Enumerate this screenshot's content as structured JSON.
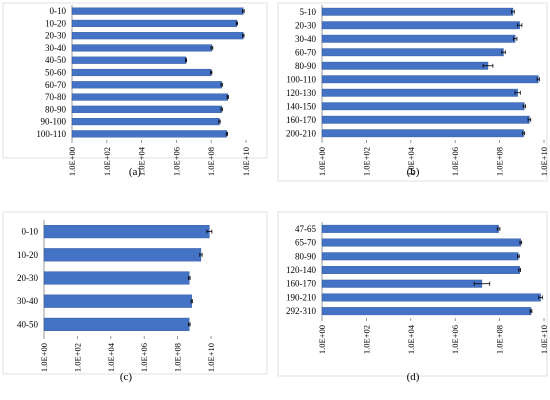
{
  "theme": {
    "bar_color": "#4472c4",
    "bar_edge": "#2f5597",
    "frame_color": "#d9d9d9",
    "axis_color": "#7f7f7f"
  },
  "chart_data": [
    {
      "type": "bar",
      "orientation": "horizontal",
      "panel_label": "(a)",
      "x_scale": "log",
      "xlim": [
        1,
        10000000000
      ],
      "x_ticks": [
        "1.0E+00",
        "1.0E+02",
        "1.0E+04",
        "1.0E+06",
        "1.0E+08",
        "1.0E+10"
      ],
      "categories": [
        "0-10",
        "10-20",
        "20-30",
        "30-40",
        "40-50",
        "50-60",
        "60-70",
        "70-80",
        "80-90",
        "90-100",
        "100-110"
      ],
      "values": [
        7000000000,
        3000000000,
        7000000000,
        110000000,
        3600000,
        100000000,
        400000000,
        900000000,
        400000000,
        300000000,
        800000000
      ],
      "error": [
        0.05,
        0.04,
        0.04,
        0.05,
        0.03,
        0.04,
        0.04,
        0.04,
        0.04,
        0.04,
        0.04
      ],
      "grid": false,
      "legend": "none"
    },
    {
      "type": "bar",
      "orientation": "horizontal",
      "panel_label": "(b)",
      "x_scale": "log",
      "xlim": [
        1,
        10000000000
      ],
      "x_ticks": [
        "1.0E+00",
        "1.0E+02",
        "1.0E+04",
        "1.0E+06",
        "1.0E+08",
        "1.0E+10"
      ],
      "categories": [
        "5-10",
        "20-30",
        "30-40",
        "60-70",
        "80-90",
        "100-110",
        "120-130",
        "140-150",
        "160-170",
        "200-210"
      ],
      "values": [
        400000000,
        800000000,
        500000000,
        150000000,
        30000000,
        5500000000,
        650000000,
        1300000000,
        2200000000,
        1200000000
      ],
      "error": [
        0.06,
        0.1,
        0.08,
        0.08,
        0.22,
        0.05,
        0.12,
        0.05,
        0.06,
        0.04
      ],
      "grid": false,
      "legend": "none"
    },
    {
      "type": "bar",
      "orientation": "horizontal",
      "panel_label": "(c)",
      "x_scale": "log",
      "xlim": [
        1,
        10000000000
      ],
      "x_ticks": [
        "1.0E+00",
        "1.0E+02",
        "1.0E+04",
        "1.0E+06",
        "1.0E+08",
        "1.0E+10"
      ],
      "categories": [
        "0-10",
        "10-20",
        "20-30",
        "30-40",
        "40-50"
      ],
      "values": [
        8000000000,
        2500000000,
        500000000,
        700000000,
        500000000
      ],
      "error": [
        0.15,
        0.07,
        0.05,
        0.04,
        0.05
      ],
      "grid": false,
      "legend": "none"
    },
    {
      "type": "bar",
      "orientation": "horizontal",
      "panel_label": "(d)",
      "x_scale": "log",
      "xlim": [
        1,
        10000000000
      ],
      "x_ticks": [
        "1.0E+00",
        "1.0E+02",
        "1.0E+04",
        "1.0E+06",
        "1.0E+08",
        "1.0E+10"
      ],
      "categories": [
        "47-65",
        "65-70",
        "80-90",
        "120-140",
        "160-170",
        "190-210",
        "292-310"
      ],
      "values": [
        90000000,
        900000000,
        700000000,
        800000000,
        16000000,
        7000000000,
        2600000000
      ],
      "error": [
        0.06,
        0.04,
        0.04,
        0.04,
        0.35,
        0.08,
        0.04
      ],
      "grid": false,
      "legend": "none"
    }
  ]
}
